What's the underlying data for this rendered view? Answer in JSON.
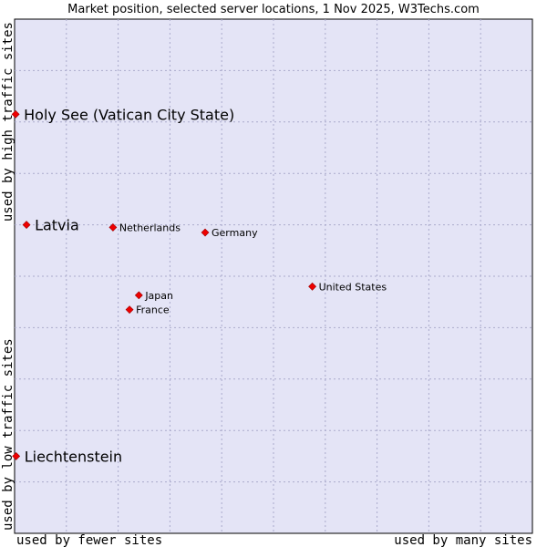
{
  "chart_data": {
    "type": "scatter",
    "title": "Market position, selected server locations, 1 Nov 2025, W3Techs.com",
    "xlabel_left": "used by fewer sites",
    "xlabel_right": "used by many sites",
    "ylabel_bottom": "used by low traffic sites",
    "ylabel_top": "used by high traffic sites",
    "xlim": [
      0,
      100
    ],
    "ylim": [
      0,
      100
    ],
    "grid": true,
    "colors": {
      "background": "#e4e4f6",
      "point": "#ee0000",
      "grid": "#aaaacc"
    },
    "points": [
      {
        "name": "Holy See (Vatican City State)",
        "x": 0.2,
        "y": 81.5,
        "size": "large"
      },
      {
        "name": "Latvia",
        "x": 2.3,
        "y": 60.0,
        "size": "large"
      },
      {
        "name": "Netherlands",
        "x": 19.0,
        "y": 59.5,
        "size": "small"
      },
      {
        "name": "Germany",
        "x": 36.8,
        "y": 58.5,
        "size": "small"
      },
      {
        "name": "United States",
        "x": 57.5,
        "y": 48.0,
        "size": "small"
      },
      {
        "name": "Japan",
        "x": 24.0,
        "y": 46.3,
        "size": "small"
      },
      {
        "name": "France",
        "x": 22.2,
        "y": 43.5,
        "size": "small"
      },
      {
        "name": "Liechtenstein",
        "x": 0.3,
        "y": 15.0,
        "size": "large"
      }
    ]
  }
}
